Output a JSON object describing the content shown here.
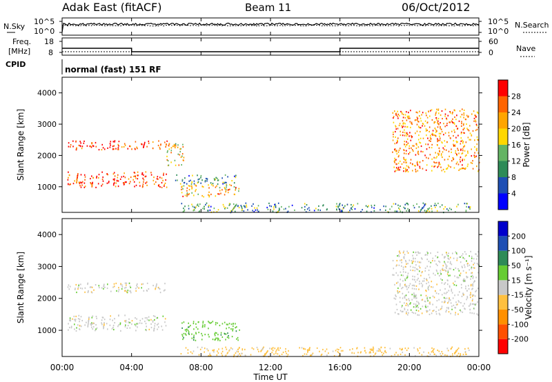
{
  "header": {
    "station": "Adak East (fitACF)",
    "beam": "Beam 11",
    "date": "06/Oct/2012"
  },
  "noise_panel": {
    "left_label": "N.Sky",
    "right_label": "N.Search",
    "left_ticks": [
      "10^5",
      "10^0"
    ],
    "right_ticks": [
      "10^5",
      "10^0"
    ]
  },
  "freq_panel": {
    "left_label_1": "Freq.",
    "left_label_2": "[MHz]",
    "left_ticks": [
      "18",
      "8"
    ],
    "right_label": "Nave",
    "right_ticks": [
      "60",
      "0"
    ]
  },
  "cpid_panel": {
    "label": "CPID",
    "program": "normal (fast) 151 RF"
  },
  "power_panel": {
    "ylabel": "Slant Range [km]",
    "y_ticks": [
      "4000",
      "3000",
      "2000",
      "1000"
    ],
    "colorbar_label": "Power [dB]",
    "colorbar_ticks": [
      "28",
      "24",
      "20",
      "16",
      "12",
      "8",
      "4"
    ]
  },
  "velocity_panel": {
    "ylabel": "Slant Range [km]",
    "y_ticks": [
      "4000",
      "3000",
      "2000",
      "1000"
    ],
    "colorbar_label": "Velocity [m s⁻¹]",
    "colorbar_ticks": [
      "200",
      "100",
      "50",
      "15",
      "-15",
      "-50",
      "-100",
      "-200"
    ]
  },
  "x_axis": {
    "label": "Time UT",
    "ticks": [
      "00:00",
      "04:00",
      "08:00",
      "12:00",
      "16:00",
      "20:00",
      "00:00"
    ]
  },
  "colors": {
    "power_scale": [
      "#0000ff",
      "#1e4fb4",
      "#2e8b57",
      "#64b464",
      "#ffd700",
      "#ffa500",
      "#ff6400",
      "#ff0000"
    ],
    "velocity_scale": [
      "#ff0000",
      "#ff5000",
      "#ff9000",
      "#ffc040",
      "#c8c8c8",
      "#66cc33",
      "#2e8b57",
      "#1e4fb4",
      "#0000cc"
    ]
  },
  "chart_data": {
    "type": "heatmap",
    "x_range_hours": [
      0,
      24
    ],
    "y_range_km": [
      180,
      4500
    ],
    "power_range_db": [
      0,
      30
    ],
    "velocity_range": [
      -250,
      250
    ],
    "freq_mhz": [
      {
        "start": 0,
        "end": 4,
        "value": 12
      },
      {
        "start": 4,
        "end": 16,
        "value": 10
      },
      {
        "start": 16,
        "end": 24,
        "value": 12
      }
    ],
    "power_regions": [
      {
        "t": [
          0.3,
          6.2
        ],
        "r": [
          2200,
          2500
        ],
        "db": 27
      },
      {
        "t": [
          0.3,
          6.0
        ],
        "r": [
          1000,
          1500
        ],
        "db": 27
      },
      {
        "t": [
          6.0,
          7.0
        ],
        "r": [
          1700,
          2400
        ],
        "db": 18
      },
      {
        "t": [
          6.8,
          10.2
        ],
        "r": [
          700,
          1100
        ],
        "db": 20
      },
      {
        "t": [
          6.5,
          10.0
        ],
        "r": [
          1100,
          1400
        ],
        "db": 10
      },
      {
        "t": [
          19.0,
          24.0
        ],
        "r": [
          1500,
          3500
        ],
        "db": 22
      },
      {
        "t": [
          6.8,
          23.5
        ],
        "r": [
          200,
          500
        ],
        "db": 10
      }
    ],
    "velocity_regions": [
      {
        "t": [
          0.3,
          6.2
        ],
        "r": [
          2200,
          2500
        ],
        "v": 0
      },
      {
        "t": [
          0.3,
          6.0
        ],
        "r": [
          1000,
          1500
        ],
        "v": 0
      },
      {
        "t": [
          6.8,
          10.2
        ],
        "r": [
          700,
          1300
        ],
        "v": 35
      },
      {
        "t": [
          19.0,
          24.0
        ],
        "r": [
          1500,
          3500
        ],
        "v": 0
      },
      {
        "t": [
          6.8,
          23.5
        ],
        "r": [
          200,
          500
        ],
        "v": -30
      }
    ]
  }
}
